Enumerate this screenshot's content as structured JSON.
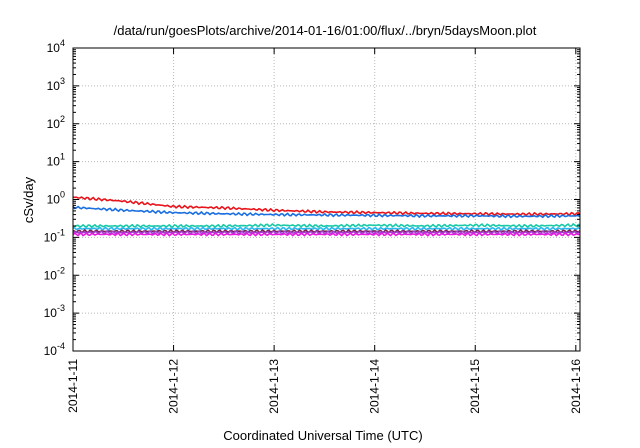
{
  "chart_data": {
    "type": "line",
    "title": "/data/run/goesPlots/archive/2014-01-16/01:00/flux/../bryn/5daysMoon.plot",
    "xlabel": "Coordinated Universal Time (UTC)",
    "ylabel": "cSv/day",
    "yscale": "log",
    "ylim": [
      0.0001,
      10000
    ],
    "xlim": [
      "2014-01-11",
      "2014-01-16 01:00"
    ],
    "grid": true,
    "legend": "none",
    "x_ticks": [
      {
        "label": "2014-1-11",
        "day": 0
      },
      {
        "label": "2014-1-12",
        "day": 1
      },
      {
        "label": "2014-1-13",
        "day": 2
      },
      {
        "label": "2014-1-14",
        "day": 3
      },
      {
        "label": "2014-1-15",
        "day": 4
      },
      {
        "label": "2014-1-16",
        "day": 5
      }
    ],
    "y_ticks": [
      {
        "base": "10",
        "exp": "-4",
        "value": 0.0001
      },
      {
        "base": "10",
        "exp": "-3",
        "value": 0.001
      },
      {
        "base": "10",
        "exp": "-2",
        "value": 0.01
      },
      {
        "base": "10",
        "exp": "-1",
        "value": 0.1
      },
      {
        "base": "10",
        "exp": "0",
        "value": 1
      },
      {
        "base": "10",
        "exp": "1",
        "value": 10
      },
      {
        "base": "10",
        "exp": "2",
        "value": 100
      },
      {
        "base": "10",
        "exp": "3",
        "value": 1000
      },
      {
        "base": "10",
        "exp": "4",
        "value": 10000
      }
    ],
    "series": [
      {
        "color": "#e8141c",
        "days": [
          0,
          0.5,
          1,
          1.5,
          2,
          2.5,
          3,
          3.5,
          4,
          4.5,
          5,
          5.04
        ],
        "values": [
          1.15,
          0.9,
          0.65,
          0.6,
          0.52,
          0.47,
          0.45,
          0.43,
          0.42,
          0.41,
          0.42,
          0.42
        ]
      },
      {
        "color": "#1a6fe0",
        "days": [
          0,
          0.5,
          1,
          1.5,
          2,
          2.5,
          3,
          3.5,
          4,
          4.5,
          5,
          5.04
        ],
        "values": [
          0.62,
          0.52,
          0.45,
          0.42,
          0.4,
          0.39,
          0.38,
          0.37,
          0.37,
          0.36,
          0.37,
          0.37
        ]
      },
      {
        "color": "#19c9a6",
        "days": [
          0,
          0.5,
          1,
          1.5,
          2,
          2.5,
          3,
          3.5,
          4,
          4.5,
          5,
          5.04
        ],
        "values": [
          0.2,
          0.2,
          0.2,
          0.2,
          0.21,
          0.2,
          0.21,
          0.2,
          0.21,
          0.2,
          0.21,
          0.21
        ]
      },
      {
        "color": "#2ab7ef",
        "days": [
          0,
          0.5,
          1,
          1.5,
          2,
          2.5,
          3,
          3.5,
          4,
          4.5,
          5,
          5.04
        ],
        "values": [
          0.17,
          0.17,
          0.17,
          0.17,
          0.17,
          0.17,
          0.17,
          0.17,
          0.17,
          0.17,
          0.17,
          0.17
        ]
      },
      {
        "color": "#7f1e4c",
        "days": [
          0,
          0.5,
          1,
          1.5,
          2,
          2.5,
          3,
          3.5,
          4,
          4.5,
          5,
          5.04
        ],
        "values": [
          0.145,
          0.145,
          0.145,
          0.145,
          0.145,
          0.145,
          0.145,
          0.145,
          0.145,
          0.145,
          0.145,
          0.145
        ]
      },
      {
        "color": "#9f3fcf",
        "days": [
          0,
          0.5,
          1,
          1.5,
          2,
          2.5,
          3,
          3.5,
          4,
          4.5,
          5,
          5.04
        ],
        "values": [
          0.135,
          0.135,
          0.135,
          0.135,
          0.135,
          0.135,
          0.135,
          0.135,
          0.135,
          0.135,
          0.135,
          0.135
        ]
      },
      {
        "color": "#e81ae0",
        "days": [
          0,
          0.5,
          1,
          1.5,
          2,
          2.5,
          3,
          3.5,
          4,
          4.5,
          5,
          5.04
        ],
        "values": [
          0.12,
          0.12,
          0.12,
          0.12,
          0.12,
          0.12,
          0.12,
          0.12,
          0.12,
          0.12,
          0.12,
          0.12
        ]
      }
    ]
  }
}
